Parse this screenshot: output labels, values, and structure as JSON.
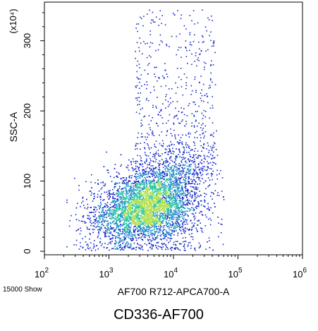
{
  "chart_data": {
    "type": "scatter",
    "subtype": "flow-cytometry density dot plot",
    "title": "",
    "caption": "CD336-AF700",
    "xlabel": "AF700 R712-APCA700-A",
    "ylabel": "SSC-A",
    "y_multiplier_label": "(x10⁴)",
    "x_scale": "log",
    "xlim": [
      100,
      1000000
    ],
    "x_ticks": [
      {
        "value": 100,
        "base": "10",
        "exp": "2"
      },
      {
        "value": 1000,
        "base": "10",
        "exp": "3"
      },
      {
        "value": 10000,
        "base": "10",
        "exp": "4"
      },
      {
        "value": 100000,
        "base": "10",
        "exp": "5"
      },
      {
        "value": 1000000,
        "base": "10",
        "exp": "6"
      }
    ],
    "ylim": [
      -5,
      355
    ],
    "y_ticks": [
      0,
      100,
      200,
      300
    ],
    "events_shown_label": "15000 Show",
    "population": {
      "description_values": {
        "center_x": 4000,
        "center_y": 65,
        "x_range": [
          120,
          60000
        ],
        "y_range": [
          0,
          350
        ]
      }
    },
    "colors": {
      "low_density": "#1428c8",
      "mid_density": "#1e90c8",
      "high_density": "#2ec8a0",
      "peak_density": "#b4e050"
    }
  }
}
